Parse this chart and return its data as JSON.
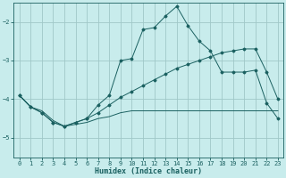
{
  "xlabel": "Humidex (Indice chaleur)",
  "bg_color": "#c8ecec",
  "grid_color": "#a0c8c8",
  "line_color": "#1a6060",
  "xlim": [
    -0.5,
    23.5
  ],
  "ylim": [
    -5.5,
    -1.5
  ],
  "yticks": [
    -5,
    -4,
    -3,
    -2
  ],
  "xticks": [
    0,
    1,
    2,
    3,
    4,
    5,
    6,
    7,
    8,
    9,
    10,
    11,
    12,
    13,
    14,
    15,
    16,
    17,
    18,
    19,
    20,
    21,
    22,
    23
  ],
  "line1_x": [
    0,
    1,
    2,
    3,
    4,
    5,
    6,
    7,
    8,
    9,
    10,
    11,
    12,
    13,
    14,
    15,
    16,
    17,
    18,
    19,
    20,
    21,
    22,
    23
  ],
  "line1_y": [
    -3.9,
    -4.2,
    -4.35,
    -4.6,
    -4.7,
    -4.6,
    -4.5,
    -4.15,
    -3.9,
    -3.0,
    -2.95,
    -2.2,
    -2.15,
    -1.85,
    -1.6,
    -2.1,
    -2.5,
    -2.75,
    -3.3,
    -3.3,
    -3.3,
    -3.25,
    -4.1,
    -4.5
  ],
  "line2_x": [
    0,
    1,
    2,
    3,
    4,
    5,
    6,
    7,
    8,
    9,
    10,
    11,
    12,
    13,
    14,
    15,
    16,
    17,
    18,
    19,
    20,
    21,
    22,
    23
  ],
  "line2_y": [
    -3.9,
    -4.2,
    -4.35,
    -4.6,
    -4.7,
    -4.6,
    -4.5,
    -4.35,
    -4.15,
    -3.95,
    -3.8,
    -3.65,
    -3.5,
    -3.35,
    -3.2,
    -3.1,
    -3.0,
    -2.9,
    -2.8,
    -2.75,
    -2.7,
    -2.7,
    -3.3,
    -4.0
  ],
  "line3_x": [
    0,
    1,
    2,
    3,
    4,
    5,
    6,
    7,
    8,
    9,
    10,
    11,
    12,
    13,
    14,
    15,
    16,
    17,
    18,
    19,
    20,
    21,
    22,
    23
  ],
  "line3_y": [
    -3.9,
    -4.2,
    -4.3,
    -4.55,
    -4.7,
    -4.65,
    -4.6,
    -4.5,
    -4.45,
    -4.35,
    -4.3,
    -4.3,
    -4.3,
    -4.3,
    -4.3,
    -4.3,
    -4.3,
    -4.3,
    -4.3,
    -4.3,
    -4.3,
    -4.3,
    -4.3,
    -4.3
  ]
}
